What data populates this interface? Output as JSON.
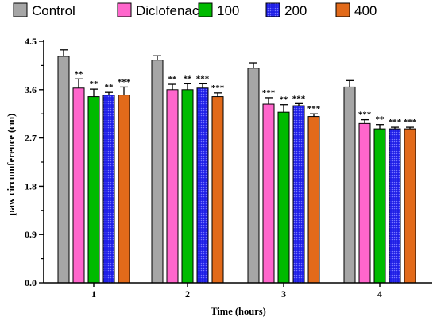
{
  "chart_data": {
    "type": "bar",
    "categories": [
      "1",
      "2",
      "3",
      "4"
    ],
    "xlabel": "Time (hours)",
    "ylabel": "paw circumference (cm)",
    "ylim": [
      0,
      4.5
    ],
    "yticks": [
      "0.0",
      "0.9",
      "1.8",
      "2.7",
      "3.6",
      "4.5"
    ],
    "error_bars": true,
    "legend_position": "top",
    "series": [
      {
        "name": "Control",
        "color": "#a6a6a6",
        "pattern": "solid",
        "values": [
          4.22,
          4.15,
          4.0,
          3.65
        ],
        "errors": [
          0.12,
          0.08,
          0.1,
          0.12
        ],
        "significance": [
          "",
          "",
          "",
          ""
        ]
      },
      {
        "name": "Diclofenac",
        "color": "#ff66cc",
        "pattern": "solid",
        "values": [
          3.63,
          3.6,
          3.33,
          2.97
        ],
        "errors": [
          0.17,
          0.1,
          0.12,
          0.07
        ],
        "significance": [
          "**",
          "**",
          "***",
          "***"
        ]
      },
      {
        "name": "100",
        "color": "#00bb00",
        "pattern": "solid",
        "values": [
          3.47,
          3.6,
          3.18,
          2.87
        ],
        "errors": [
          0.14,
          0.11,
          0.14,
          0.08
        ],
        "significance": [
          "**",
          "**",
          "**",
          "**"
        ]
      },
      {
        "name": "200",
        "color": "#1f1fe6",
        "pattern": "dotted",
        "values": [
          3.5,
          3.63,
          3.3,
          2.87
        ],
        "errors": [
          0.05,
          0.08,
          0.04,
          0.03
        ],
        "significance": [
          "**",
          "***",
          "***",
          "***"
        ]
      },
      {
        "name": "400",
        "color": "#e26a1a",
        "pattern": "solid",
        "values": [
          3.5,
          3.47,
          3.1,
          2.87
        ],
        "errors": [
          0.15,
          0.07,
          0.05,
          0.03
        ],
        "significance": [
          "***",
          "***",
          "***",
          "***"
        ]
      }
    ]
  }
}
